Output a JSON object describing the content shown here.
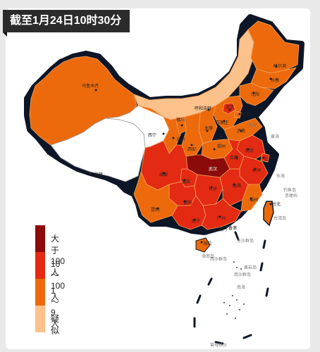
{
  "title": "截至1月24日10时30分",
  "legend": {
    "items": [
      {
        "label": "大于100人",
        "color": "#8b0a0a"
      },
      {
        "label": "10～100人",
        "color": "#e32a12"
      },
      {
        "label": "1～9人",
        "color": "#ec6a0c"
      },
      {
        "label": "疑似",
        "color": "#fdc18b"
      }
    ]
  },
  "map": {
    "province_labels": {
      "harbin": "哈尔滨",
      "changchun": "长春",
      "shenyang": "沈阳",
      "hohhot": "呼和浩特",
      "beijing": "北京",
      "tianjin": "天津",
      "shijiazhuang": "石家庄",
      "taiyuan": "太原",
      "jinan": "济南",
      "yinchuan": "银川",
      "xining": "西宁",
      "lanzhou": "兰州",
      "xian": "西安",
      "zhengzhou": "郑州",
      "nanjing": "南京",
      "hefei": "合肥",
      "shanghai": "上海",
      "hangzhou": "杭州",
      "wuhan": "武汉",
      "chengdu": "成都",
      "chongqing": "重庆",
      "changsha": "长沙",
      "nanchang": "南昌",
      "fuzhou": "福州",
      "taipei": "台北",
      "guiyang": "贵阳",
      "kunming": "昆明",
      "nanning": "南宁",
      "guangzhou": "广州",
      "hongkong": "香港",
      "macau": "澳门",
      "haikou": "海口",
      "lhasa": "拉萨",
      "urumqi": "乌鲁木齐"
    },
    "sea_labels": {
      "bohai": "渤海",
      "huanghai": "黄海",
      "donghai": "东海",
      "nanhai": "南海",
      "taiwan_island": "台湾岛",
      "hainan_island": "海南岛",
      "dongsha": "东沙群岛",
      "xisha": "西沙群岛",
      "nansha": "南沙群岛",
      "huangyan": "黄岩岛",
      "zengmu": "曾母暗沙",
      "diaoyu": "钓鱼岛",
      "chiwei": "赤尾屿"
    }
  }
}
